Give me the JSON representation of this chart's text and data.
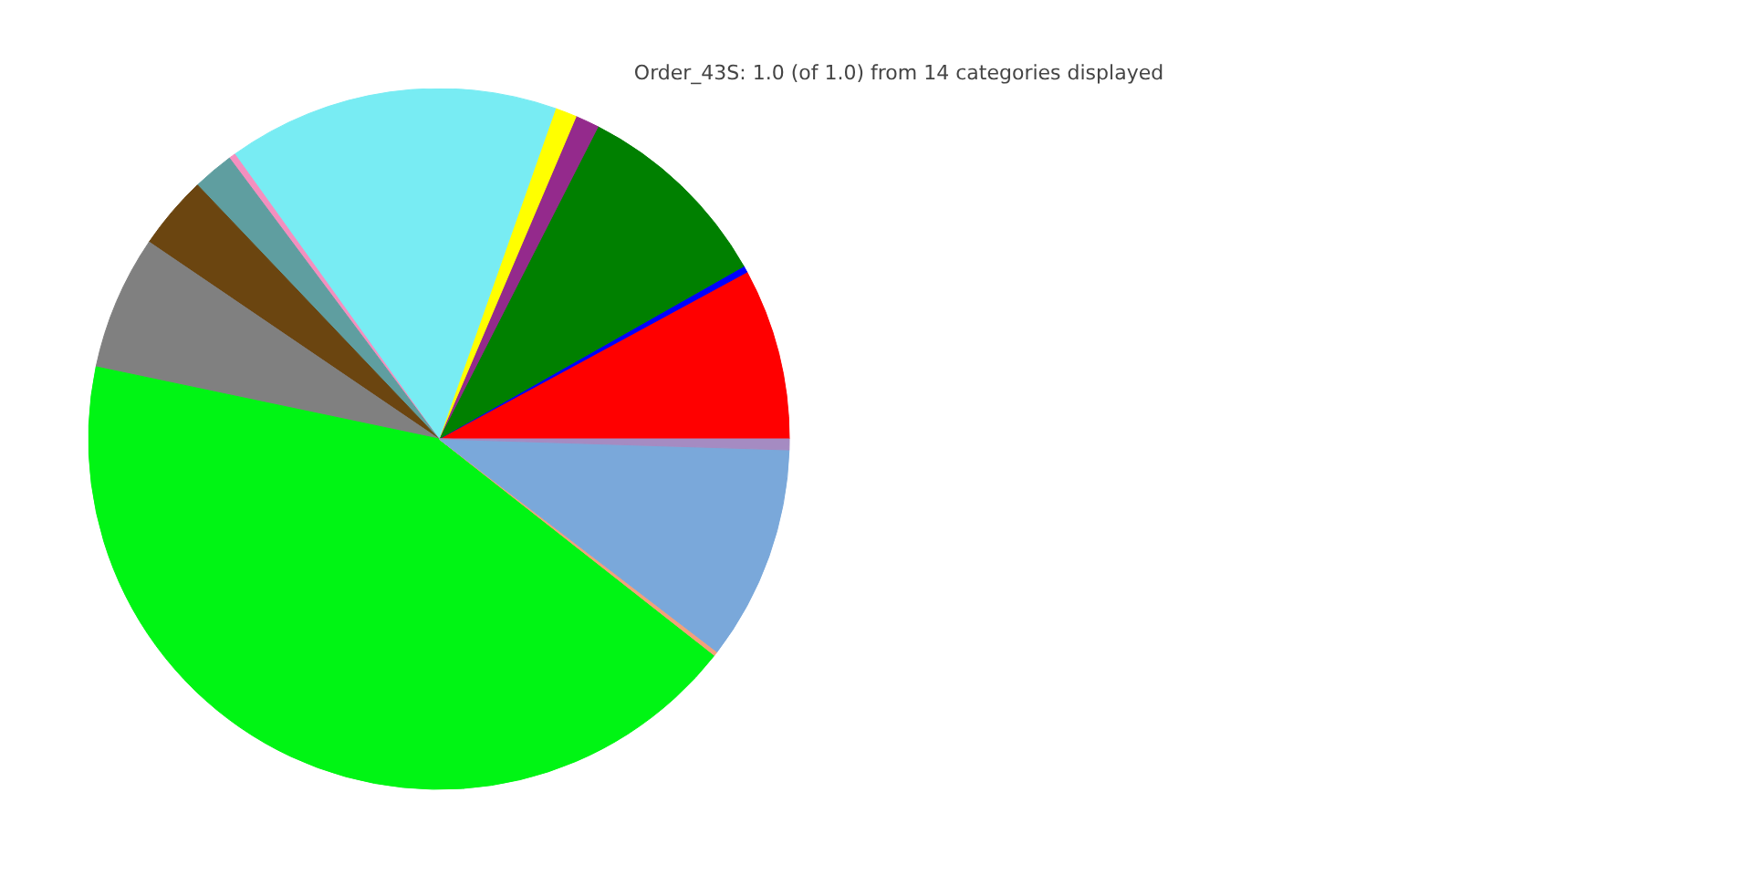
{
  "chart_data": {
    "type": "pie",
    "title": "Order_43S: 1.0 (of 1.0) from 14 categories displayed",
    "categories": [
      null,
      null,
      null,
      null,
      null,
      null,
      null,
      null,
      null,
      null,
      null,
      null,
      null,
      null
    ],
    "values": [
      7.9,
      0.3,
      9.3,
      1.1,
      1.0,
      15.3,
      0.3,
      1.9,
      3.4,
      6.2,
      42.7,
      0.2,
      9.9,
      0.5
    ],
    "colors": [
      "#ff0000",
      "#0000ff",
      "#008000",
      "#942a8c",
      "#ffff00",
      "#78ecf3",
      "#f48fbf",
      "#5f9ea0",
      "#6b4510",
      "#808080",
      "#00f514",
      "#f4a07a",
      "#7aa8da",
      "#a58bc2"
    ]
  }
}
